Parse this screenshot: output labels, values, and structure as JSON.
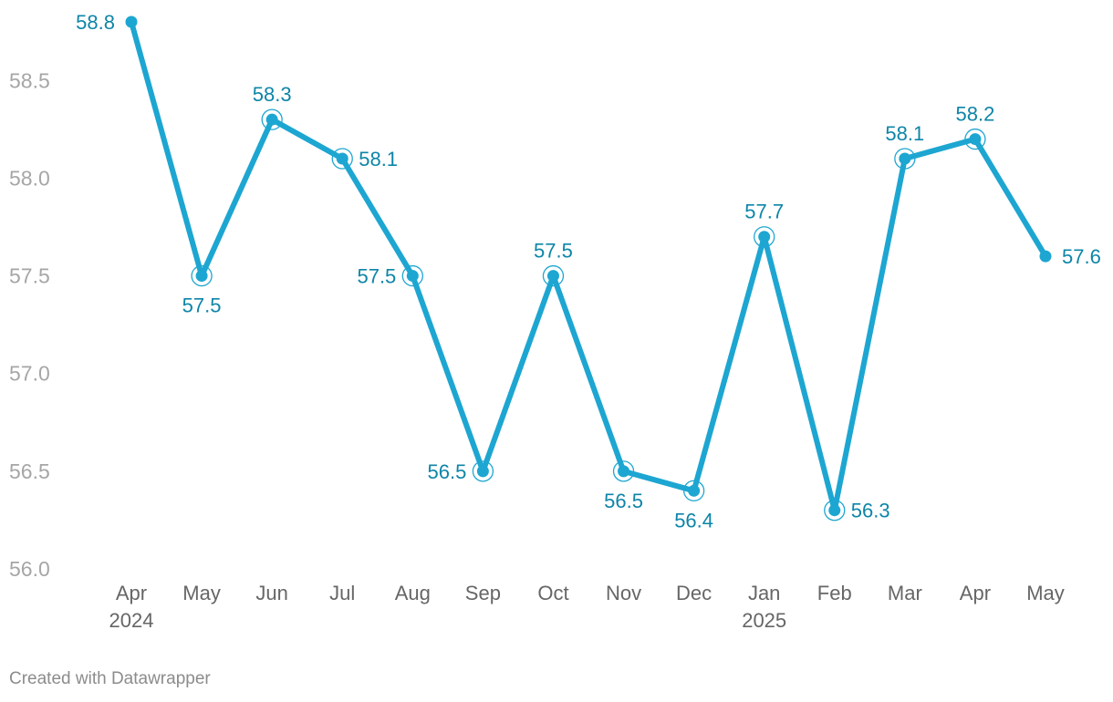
{
  "chart_data": {
    "type": "line",
    "categories": [
      "Apr 2024",
      "May",
      "Jun",
      "Jul",
      "Aug",
      "Sep",
      "Oct",
      "Nov",
      "Dec",
      "Jan 2025",
      "Feb",
      "Mar",
      "Apr",
      "May"
    ],
    "x_labels": [
      [
        "Apr",
        "2024"
      ],
      [
        "May"
      ],
      [
        "Jun"
      ],
      [
        "Jul"
      ],
      [
        "Aug"
      ],
      [
        "Sep"
      ],
      [
        "Oct"
      ],
      [
        "Nov"
      ],
      [
        "Dec"
      ],
      [
        "Jan",
        "2025"
      ],
      [
        "Feb"
      ],
      [
        "Mar"
      ],
      [
        "Apr"
      ],
      [
        "May"
      ]
    ],
    "series": [
      {
        "values": [
          58.8,
          57.5,
          58.3,
          58.1,
          57.5,
          56.5,
          57.5,
          56.5,
          56.4,
          57.7,
          56.3,
          58.1,
          58.2,
          57.6
        ],
        "color": "#1da6d1"
      }
    ],
    "data_labels": [
      "58.8",
      "57.5",
      "58.3",
      "58.1",
      "57.5",
      "56.5",
      "57.5",
      "56.5",
      "56.4",
      "57.7",
      "56.3",
      "58.1",
      "58.2",
      "57.6"
    ],
    "label_position": [
      "left",
      "below",
      "above",
      "right",
      "left",
      "left",
      "above",
      "below",
      "below",
      "above",
      "right",
      "above",
      "above",
      "right"
    ],
    "ylim": [
      56.0,
      58.8
    ],
    "yticks": [
      56.0,
      56.5,
      57.0,
      57.5,
      58.0,
      58.5
    ],
    "ytick_labels": [
      "56.0",
      "56.5",
      "57.0",
      "57.5",
      "58.0",
      "58.5"
    ],
    "grid": false,
    "label_color": "#0e85a8",
    "xlabel": "",
    "ylabel": "",
    "title": ""
  },
  "footer": {
    "credit": "Created with Datawrapper"
  }
}
